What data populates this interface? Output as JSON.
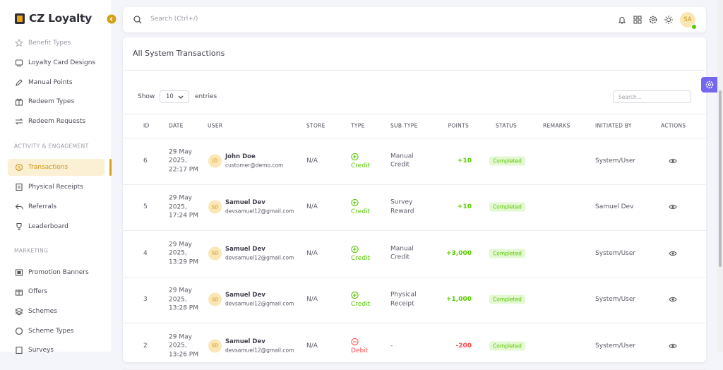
{
  "sidebar": {
    "brand": "CZ Loyalty",
    "groups": [
      {
        "items": [
          "Benefit Types",
          "Loyalty Card Designs",
          "Manual Points",
          "Redeem Types",
          "Redeem Requests"
        ]
      },
      {
        "heading": "ACTIVITY & ENGAGEMENT",
        "items": [
          "Transactions",
          "Physical Receipts",
          "Referrals",
          "Leaderboard"
        ]
      },
      {
        "heading": "MARKETING",
        "items": [
          "Promotion Banners",
          "Offers",
          "Schemes",
          "Scheme Types",
          "Surveys"
        ]
      }
    ]
  },
  "topbar": {
    "search_placeholder": "Search (Ctrl+/)",
    "avatar": "SA"
  },
  "card": {
    "title": "All System Transactions",
    "show_label": "Show",
    "page_size": "10",
    "entries_label": "entries",
    "search_placeholder": "Search..."
  },
  "table": {
    "columns": [
      "ID",
      "DATE",
      "USER",
      "STORE",
      "TYPE",
      "SUB TYPE",
      "POINTS",
      "STATUS",
      "REMARKS",
      "INITIATED BY",
      "ACTIONS"
    ],
    "rows": [
      {
        "id": "6",
        "date": "29 May 2025, 22:17 PM",
        "avatar": "JD",
        "name": "John Doe",
        "email": "customer@demo.com",
        "store": "N/A",
        "type": "Credit",
        "icon": "plus",
        "color": "#56ca00",
        "sub_type": "Manual Credit",
        "points": "+10",
        "status": "Completed",
        "initiated_by": "System/User"
      },
      {
        "id": "5",
        "date": "29 May 2025, 17:24 PM",
        "avatar": "SD",
        "name": "Samuel Dev",
        "email": "devsamuel12@gmail.com",
        "store": "N/A",
        "type": "Credit",
        "icon": "plus",
        "color": "#56ca00",
        "sub_type": "Survey Reward",
        "points": "+10",
        "status": "Completed",
        "initiated_by": "Samuel Dev"
      },
      {
        "id": "4",
        "date": "29 May 2025, 13:29 PM",
        "avatar": "SD",
        "name": "Samuel Dev",
        "email": "devsamuel12@gmail.com",
        "store": "N/A",
        "type": "Credit",
        "icon": "plus",
        "color": "#56ca00",
        "sub_type": "Manual Credit",
        "points": "+3,000",
        "status": "Completed",
        "initiated_by": "System/User"
      },
      {
        "id": "3",
        "date": "29 May 2025, 13:28 PM",
        "avatar": "SD",
        "name": "Samuel Dev",
        "email": "devsamuel12@gmail.com",
        "store": "N/A",
        "type": "Credit",
        "icon": "plus",
        "color": "#56ca00",
        "sub_type": "Physical Receipt",
        "points": "+1,000",
        "status": "Completed",
        "initiated_by": "System/User"
      },
      {
        "id": "2",
        "date": "29 May 2025, 13:26 PM",
        "avatar": "SD",
        "name": "Samuel Dev",
        "email": "devsamuel12@gmail.com",
        "store": "N/A",
        "type": "Debit",
        "icon": "minus",
        "color": "#ff4c51",
        "sub_type": "-",
        "points": "-200",
        "status": "Completed",
        "initiated_by": "System/User"
      }
    ]
  }
}
